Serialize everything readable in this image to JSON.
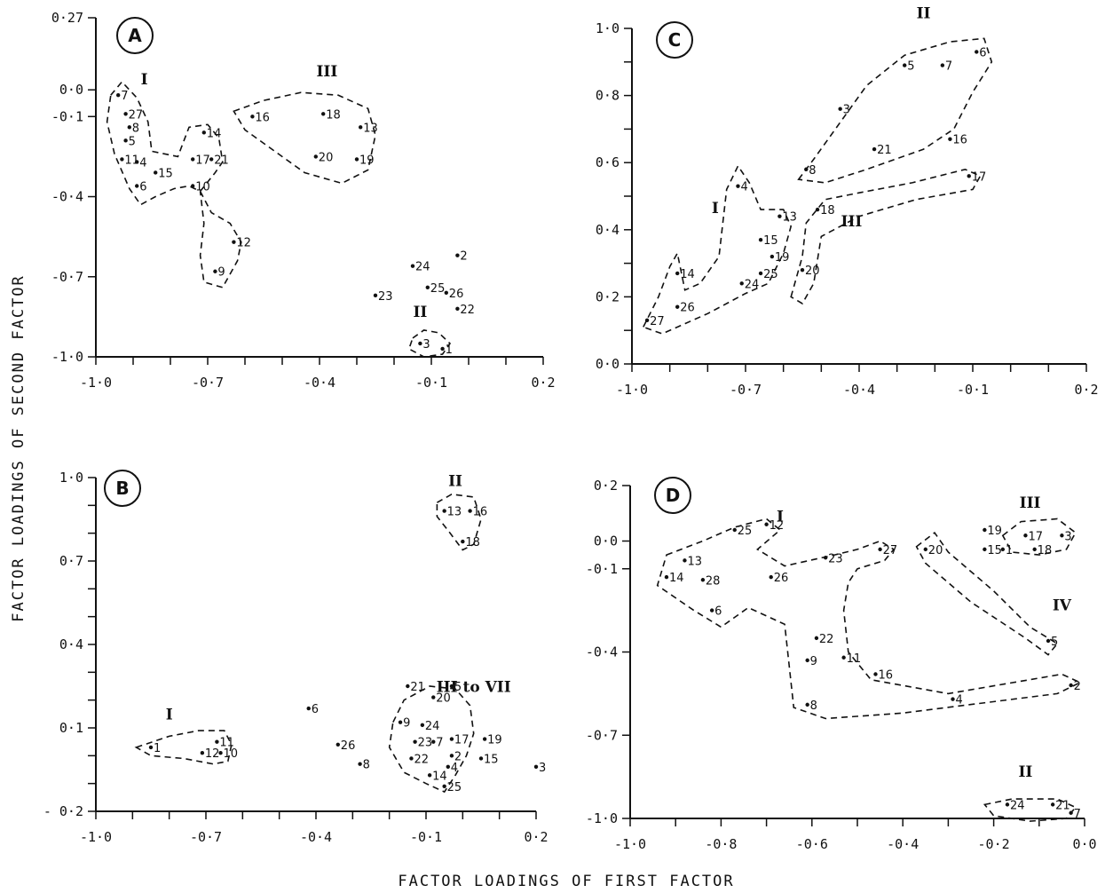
{
  "figure": {
    "xlabel": "FACTOR LOADINGS OF FIRST FACTOR",
    "ylabel": "FACTOR LOADINGS OF SECOND FACTOR"
  },
  "chart_data": [
    {
      "id": "A",
      "type": "scatter",
      "panel_label": "A",
      "xlim": [
        -1.0,
        0.2
      ],
      "ylim": [
        -1.0,
        0.27
      ],
      "xticks": [
        -1.0,
        -0.9,
        -0.8,
        -0.7,
        -0.6,
        -0.5,
        -0.4,
        -0.3,
        -0.2,
        -0.1,
        0.0,
        0.1,
        0.2
      ],
      "xtick_labels": [
        {
          "v": -1.0,
          "t": "-1·0"
        },
        {
          "v": -0.7,
          "t": "-0·7"
        },
        {
          "v": -0.4,
          "t": "-0·4"
        },
        {
          "v": -0.1,
          "t": "-0·1"
        },
        {
          "v": 0.2,
          "t": "0·2"
        }
      ],
      "yticks": [
        -1.0,
        -0.7,
        -0.4,
        -0.1,
        0.0,
        0.27
      ],
      "ytick_labels": [
        {
          "v": 0.27,
          "t": "0·27"
        },
        {
          "v": 0.0,
          "t": "0·0"
        },
        {
          "v": -0.1,
          "t": "-0·1"
        },
        {
          "v": -0.4,
          "t": "-0·4"
        },
        {
          "v": -0.7,
          "t": "-0·7"
        },
        {
          "v": -1.0,
          "t": "-1·0"
        }
      ],
      "points": [
        {
          "id": "7",
          "x": -0.94,
          "y": -0.02
        },
        {
          "id": "27",
          "x": -0.92,
          "y": -0.09
        },
        {
          "id": "8",
          "x": -0.91,
          "y": -0.14
        },
        {
          "id": "5",
          "x": -0.92,
          "y": -0.19
        },
        {
          "id": "11",
          "x": -0.93,
          "y": -0.26
        },
        {
          "id": "4",
          "x": -0.89,
          "y": -0.27
        },
        {
          "id": "6",
          "x": -0.89,
          "y": -0.36
        },
        {
          "id": "15",
          "x": -0.84,
          "y": -0.31
        },
        {
          "id": "10",
          "x": -0.74,
          "y": -0.36
        },
        {
          "id": "17",
          "x": -0.74,
          "y": -0.26
        },
        {
          "id": "21",
          "x": -0.69,
          "y": -0.26
        },
        {
          "id": "14",
          "x": -0.71,
          "y": -0.16
        },
        {
          "id": "12",
          "x": -0.63,
          "y": -0.57
        },
        {
          "id": "9",
          "x": -0.68,
          "y": -0.68
        },
        {
          "id": "16",
          "x": -0.58,
          "y": -0.1
        },
        {
          "id": "18",
          "x": -0.39,
          "y": -0.09
        },
        {
          "id": "13",
          "x": -0.29,
          "y": -0.14
        },
        {
          "id": "20",
          "x": -0.41,
          "y": -0.25
        },
        {
          "id": "19",
          "x": -0.3,
          "y": -0.26
        },
        {
          "id": "24",
          "x": -0.15,
          "y": -0.66
        },
        {
          "id": "2",
          "x": -0.03,
          "y": -0.62
        },
        {
          "id": "25",
          "x": -0.11,
          "y": -0.74
        },
        {
          "id": "26",
          "x": -0.06,
          "y": -0.76
        },
        {
          "id": "23",
          "x": -0.25,
          "y": -0.77
        },
        {
          "id": "22",
          "x": -0.03,
          "y": -0.82
        },
        {
          "id": "3",
          "x": -0.13,
          "y": -0.95
        },
        {
          "id": "1",
          "x": -0.07,
          "y": -0.97
        }
      ],
      "groups": [
        {
          "name": "I",
          "label_at": [
            -0.87,
            0.02
          ]
        },
        {
          "name": "II",
          "label_at": [
            -0.13,
            -0.85
          ]
        },
        {
          "name": "III",
          "label_at": [
            -0.38,
            0.05
          ]
        }
      ]
    },
    {
      "id": "C",
      "type": "scatter",
      "panel_label": "C",
      "xlim": [
        -1.0,
        0.2
      ],
      "ylim": [
        0.0,
        1.0
      ],
      "xticks": [
        -1.0,
        -0.9,
        -0.8,
        -0.7,
        -0.6,
        -0.5,
        -0.4,
        -0.3,
        -0.2,
        -0.1,
        0.0,
        0.1,
        0.2
      ],
      "xtick_labels": [
        {
          "v": -1.0,
          "t": "-1·0"
        },
        {
          "v": -0.7,
          "t": "-0·7"
        },
        {
          "v": -0.4,
          "t": "-0·4"
        },
        {
          "v": -0.1,
          "t": "-0·1"
        },
        {
          "v": 0.2,
          "t": "0·2"
        }
      ],
      "yticks": [
        0.0,
        0.1,
        0.2,
        0.3,
        0.4,
        0.5,
        0.6,
        0.7,
        0.8,
        0.9,
        1.0
      ],
      "ytick_labels": [
        {
          "v": 1.0,
          "t": "1·0"
        },
        {
          "v": 0.8,
          "t": "0·8"
        },
        {
          "v": 0.6,
          "t": "0·6"
        },
        {
          "v": 0.4,
          "t": "0·4"
        },
        {
          "v": 0.2,
          "t": "0·2"
        },
        {
          "v": 0.0,
          "t": "0·0"
        }
      ],
      "points": [
        {
          "id": "6",
          "x": -0.09,
          "y": 0.93
        },
        {
          "id": "7",
          "x": -0.18,
          "y": 0.89
        },
        {
          "id": "5",
          "x": -0.28,
          "y": 0.89
        },
        {
          "id": "3",
          "x": -0.45,
          "y": 0.76
        },
        {
          "id": "16",
          "x": -0.16,
          "y": 0.67
        },
        {
          "id": "21",
          "x": -0.36,
          "y": 0.64
        },
        {
          "id": "8",
          "x": -0.54,
          "y": 0.58
        },
        {
          "id": "17",
          "x": -0.11,
          "y": 0.56
        },
        {
          "id": "4",
          "x": -0.72,
          "y": 0.53
        },
        {
          "id": "18",
          "x": -0.51,
          "y": 0.46
        },
        {
          "id": "13",
          "x": -0.61,
          "y": 0.44
        },
        {
          "id": "15",
          "x": -0.66,
          "y": 0.37
        },
        {
          "id": "19",
          "x": -0.63,
          "y": 0.32
        },
        {
          "id": "25",
          "x": -0.66,
          "y": 0.27
        },
        {
          "id": "20",
          "x": -0.55,
          "y": 0.28
        },
        {
          "id": "24",
          "x": -0.71,
          "y": 0.24
        },
        {
          "id": "14",
          "x": -0.88,
          "y": 0.27
        },
        {
          "id": "26",
          "x": -0.88,
          "y": 0.17
        },
        {
          "id": "27",
          "x": -0.96,
          "y": 0.13
        }
      ],
      "groups": [
        {
          "name": "I",
          "label_at": [
            -0.78,
            0.45
          ]
        },
        {
          "name": "II",
          "label_at": [
            -0.23,
            1.03
          ]
        },
        {
          "name": "III",
          "label_at": [
            -0.42,
            0.41
          ]
        }
      ]
    },
    {
      "id": "B",
      "type": "scatter",
      "panel_label": "B",
      "xlim": [
        -1.0,
        0.2
      ],
      "ylim": [
        -0.2,
        1.0
      ],
      "xticks": [
        -1.0,
        -0.9,
        -0.8,
        -0.7,
        -0.6,
        -0.5,
        -0.4,
        -0.3,
        -0.2,
        -0.1,
        0.0,
        0.1,
        0.2
      ],
      "xtick_labels": [
        {
          "v": -1.0,
          "t": "-1·0"
        },
        {
          "v": -0.7,
          "t": "-0·7"
        },
        {
          "v": -0.4,
          "t": "-0·4"
        },
        {
          "v": -0.1,
          "t": "-0·1"
        },
        {
          "v": 0.2,
          "t": "0·2"
        }
      ],
      "yticks": [
        -0.2,
        -0.1,
        0.0,
        0.1,
        0.2,
        0.3,
        0.4,
        0.5,
        0.6,
        0.7,
        0.8,
        0.9,
        1.0
      ],
      "ytick_labels": [
        {
          "v": 1.0,
          "t": "1·0"
        },
        {
          "v": 0.7,
          "t": "0·7"
        },
        {
          "v": 0.4,
          "t": "0·4"
        },
        {
          "v": 0.1,
          "t": "0·1"
        },
        {
          "v": -0.2,
          "t": "- 0·2"
        }
      ],
      "points": [
        {
          "id": "13",
          "x": -0.05,
          "y": 0.88
        },
        {
          "id": "16",
          "x": 0.02,
          "y": 0.88
        },
        {
          "id": "18",
          "x": 0.0,
          "y": 0.77
        },
        {
          "id": "21",
          "x": -0.15,
          "y": 0.25
        },
        {
          "id": "5",
          "x": -0.03,
          "y": 0.25
        },
        {
          "id": "20",
          "x": -0.08,
          "y": 0.21
        },
        {
          "id": "6",
          "x": -0.42,
          "y": 0.17
        },
        {
          "id": "9",
          "x": -0.17,
          "y": 0.12
        },
        {
          "id": "24",
          "x": -0.11,
          "y": 0.11
        },
        {
          "id": "17",
          "x": -0.03,
          "y": 0.06
        },
        {
          "id": "19",
          "x": 0.06,
          "y": 0.06
        },
        {
          "id": "23",
          "x": -0.13,
          "y": 0.05
        },
        {
          "id": "7",
          "x": -0.08,
          "y": 0.05
        },
        {
          "id": "26",
          "x": -0.34,
          "y": 0.04
        },
        {
          "id": "1",
          "x": -0.85,
          "y": 0.03
        },
        {
          "id": "11",
          "x": -0.67,
          "y": 0.05
        },
        {
          "id": "12",
          "x": -0.71,
          "y": 0.01
        },
        {
          "id": "10",
          "x": -0.66,
          "y": 0.01
        },
        {
          "id": "22",
          "x": -0.14,
          "y": -0.01
        },
        {
          "id": "2",
          "x": -0.03,
          "y": 0.0
        },
        {
          "id": "15",
          "x": 0.05,
          "y": -0.01
        },
        {
          "id": "8",
          "x": -0.28,
          "y": -0.03
        },
        {
          "id": "3",
          "x": 0.2,
          "y": -0.04
        },
        {
          "id": "4",
          "x": -0.04,
          "y": -0.04
        },
        {
          "id": "14",
          "x": -0.09,
          "y": -0.07
        },
        {
          "id": "25",
          "x": -0.05,
          "y": -0.11
        }
      ],
      "groups": [
        {
          "name": "I",
          "label_at": [
            -0.8,
            0.13
          ]
        },
        {
          "name": "II",
          "label_at": [
            -0.02,
            0.97
          ]
        },
        {
          "name": "III to VII",
          "label_at": [
            0.03,
            0.23
          ]
        }
      ]
    },
    {
      "id": "D",
      "type": "scatter",
      "panel_label": "D",
      "xlim": [
        -1.0,
        0.0
      ],
      "ylim": [
        -1.0,
        0.2
      ],
      "xticks": [
        -1.0,
        -0.9,
        -0.8,
        -0.7,
        -0.6,
        -0.5,
        -0.4,
        -0.3,
        -0.2,
        -0.1,
        0.0
      ],
      "xtick_labels": [
        {
          "v": -1.0,
          "t": "-1·0"
        },
        {
          "v": -0.8,
          "t": "-0·8"
        },
        {
          "v": -0.6,
          "t": "-0·6"
        },
        {
          "v": -0.4,
          "t": "-0·4"
        },
        {
          "v": -0.2,
          "t": "-0·2"
        },
        {
          "v": 0.0,
          "t": "0·0"
        }
      ],
      "yticks": [
        -1.0,
        -0.7,
        -0.4,
        -0.1,
        0.0,
        0.2
      ],
      "ytick_labels": [
        {
          "v": 0.2,
          "t": "0·2"
        },
        {
          "v": 0.0,
          "t": "0·0"
        },
        {
          "v": -0.1,
          "t": "-0·1"
        },
        {
          "v": -0.4,
          "t": "-0·4"
        },
        {
          "v": -0.7,
          "t": "-0·7"
        },
        {
          "v": -1.0,
          "t": "-1·0"
        }
      ],
      "points": [
        {
          "id": "12",
          "x": -0.7,
          "y": 0.06
        },
        {
          "id": "25",
          "x": -0.77,
          "y": 0.04
        },
        {
          "id": "13",
          "x": -0.88,
          "y": -0.07
        },
        {
          "id": "14",
          "x": -0.92,
          "y": -0.13
        },
        {
          "id": "28",
          "x": -0.84,
          "y": -0.14
        },
        {
          "id": "26",
          "x": -0.69,
          "y": -0.13
        },
        {
          "id": "6",
          "x": -0.82,
          "y": -0.25
        },
        {
          "id": "23",
          "x": -0.57,
          "y": -0.06
        },
        {
          "id": "27",
          "x": -0.45,
          "y": -0.03
        },
        {
          "id": "20",
          "x": -0.35,
          "y": -0.03
        },
        {
          "id": "19",
          "x": -0.22,
          "y": 0.04
        },
        {
          "id": "17",
          "x": -0.13,
          "y": 0.02
        },
        {
          "id": "3",
          "x": -0.05,
          "y": 0.02
        },
        {
          "id": "15",
          "x": -0.22,
          "y": -0.03
        },
        {
          "id": "1",
          "x": -0.18,
          "y": -0.03
        },
        {
          "id": "18",
          "x": -0.11,
          "y": -0.03
        },
        {
          "id": "5",
          "x": -0.08,
          "y": -0.36
        },
        {
          "id": "22",
          "x": -0.59,
          "y": -0.35
        },
        {
          "id": "9",
          "x": -0.61,
          "y": -0.43
        },
        {
          "id": "11",
          "x": -0.53,
          "y": -0.42
        },
        {
          "id": "16",
          "x": -0.46,
          "y": -0.48
        },
        {
          "id": "2",
          "x": -0.03,
          "y": -0.52
        },
        {
          "id": "4",
          "x": -0.29,
          "y": -0.57
        },
        {
          "id": "8",
          "x": -0.61,
          "y": -0.59
        },
        {
          "id": "24",
          "x": -0.17,
          "y": -0.95
        },
        {
          "id": "21",
          "x": -0.07,
          "y": -0.95
        },
        {
          "id": "7",
          "x": -0.03,
          "y": -0.98
        }
      ],
      "groups": [
        {
          "name": "I",
          "label_at": [
            -0.67,
            0.07
          ]
        },
        {
          "name": "II",
          "label_at": [
            -0.13,
            -0.85
          ]
        },
        {
          "name": "III",
          "label_at": [
            -0.12,
            0.12
          ]
        },
        {
          "name": "IV",
          "label_at": [
            -0.05,
            -0.25
          ]
        }
      ]
    }
  ]
}
